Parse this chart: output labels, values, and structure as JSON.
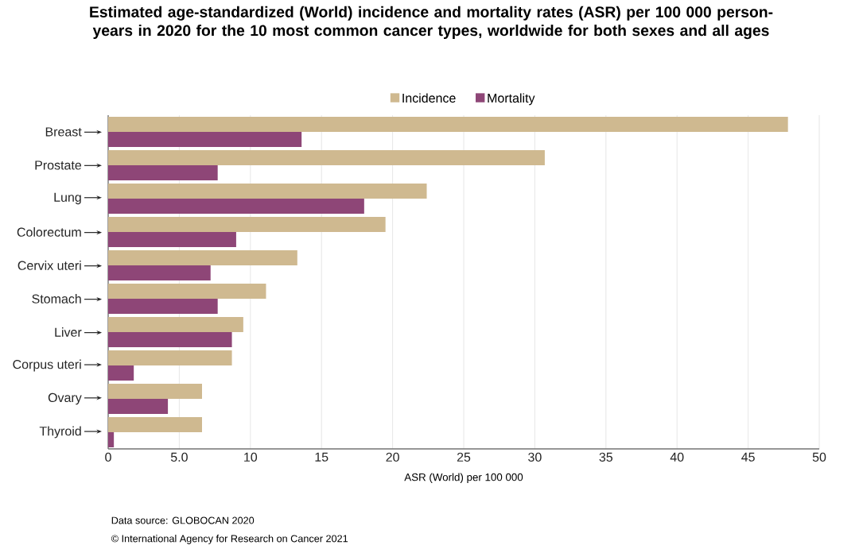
{
  "chart_data": {
    "type": "bar",
    "orientation": "horizontal",
    "title": "Estimated age-standardized (World) incidence and mortality rates (ASR) per 100 000 person-years in 2020 for the 10 most common cancer types, worldwide for both sexes and all ages",
    "xlabel": "ASR (World) per 100 000",
    "categories": [
      "Breast",
      "Prostate",
      "Lung",
      "Colorectum",
      "Cervix uteri",
      "Stomach",
      "Liver",
      "Corpus uteri",
      "Ovary",
      "Thyroid"
    ],
    "series": [
      {
        "name": "Incidence",
        "color": "#cfb990",
        "values": [
          47.8,
          30.7,
          22.4,
          19.5,
          13.3,
          11.1,
          9.5,
          8.7,
          6.6,
          6.6
        ]
      },
      {
        "name": "Mortality",
        "color": "#8e4677",
        "values": [
          13.6,
          7.7,
          18.0,
          9.0,
          7.2,
          7.7,
          8.7,
          1.8,
          4.2,
          0.4
        ]
      }
    ],
    "xlim": [
      0,
      50
    ],
    "xticks": [
      0,
      {
        "value": 5,
        "label": "5.0"
      },
      10,
      15,
      20,
      25,
      30,
      35,
      40,
      45,
      50
    ],
    "grid": "x",
    "legend": "top",
    "annotations": [
      "Data source: GLOBOCAN 2020",
      "© International Agency for Research on Cancer 2021"
    ]
  }
}
